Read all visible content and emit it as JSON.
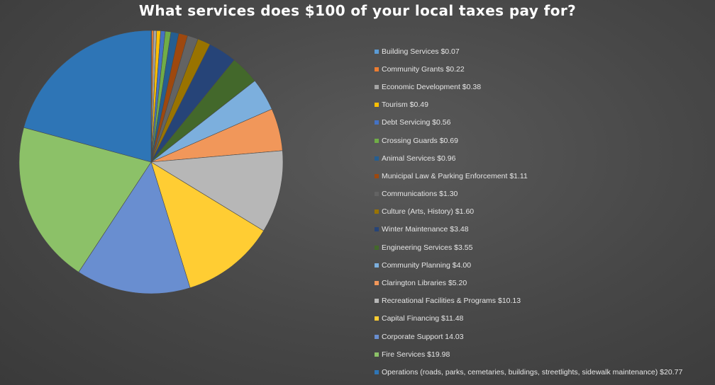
{
  "chart_data": {
    "type": "pie",
    "title": "What services does $100 of your local taxes pay for?",
    "legend_position": "right",
    "slices": [
      {
        "label": "Building Services $0.07",
        "value": 0.07,
        "color": "#5b9bd5"
      },
      {
        "label": "Community Grants $0.22",
        "value": 0.22,
        "color": "#ed7d31"
      },
      {
        "label": "Economic Development $0.38",
        "value": 0.38,
        "color": "#a5a5a5"
      },
      {
        "label": "Tourism $0.49",
        "value": 0.49,
        "color": "#ffc000"
      },
      {
        "label": "Debt Servicing $0.56",
        "value": 0.56,
        "color": "#4472c4"
      },
      {
        "label": "Crossing Guards $0.69",
        "value": 0.69,
        "color": "#70ad47"
      },
      {
        "label": "Animal Services $0.96",
        "value": 0.96,
        "color": "#255e91"
      },
      {
        "label": "Municipal Law & Parking Enforcement $1.11",
        "value": 1.11,
        "color": "#9e480e"
      },
      {
        "label": "Communications $1.30",
        "value": 1.3,
        "color": "#636363"
      },
      {
        "label": "Culture (Arts, History) $1.60",
        "value": 1.6,
        "color": "#997300"
      },
      {
        "label": "Winter Maintenance $3.48",
        "value": 3.48,
        "color": "#264478"
      },
      {
        "label": "Engineering Services $3.55",
        "value": 3.55,
        "color": "#43682b"
      },
      {
        "label": "Community Planning $4.00",
        "value": 4.0,
        "color": "#7cafdd"
      },
      {
        "label": "Clarington Libraries $5.20",
        "value": 5.2,
        "color": "#f1975a"
      },
      {
        "label": "Recreational Facilities & Programs $10.13",
        "value": 10.13,
        "color": "#b7b7b7"
      },
      {
        "label": "Capital Financing $11.48",
        "value": 11.48,
        "color": "#ffcd33"
      },
      {
        "label": "Corporate Support 14.03",
        "value": 14.03,
        "color": "#698ed0"
      },
      {
        "label": "Fire Services $19.98",
        "value": 19.98,
        "color": "#8cc168"
      },
      {
        "label": "Operations (roads, parks, cemetaries, buildings, streetlights, sidewalk maintenance) $20.77",
        "value": 20.77,
        "color": "#2e75b6"
      }
    ]
  }
}
